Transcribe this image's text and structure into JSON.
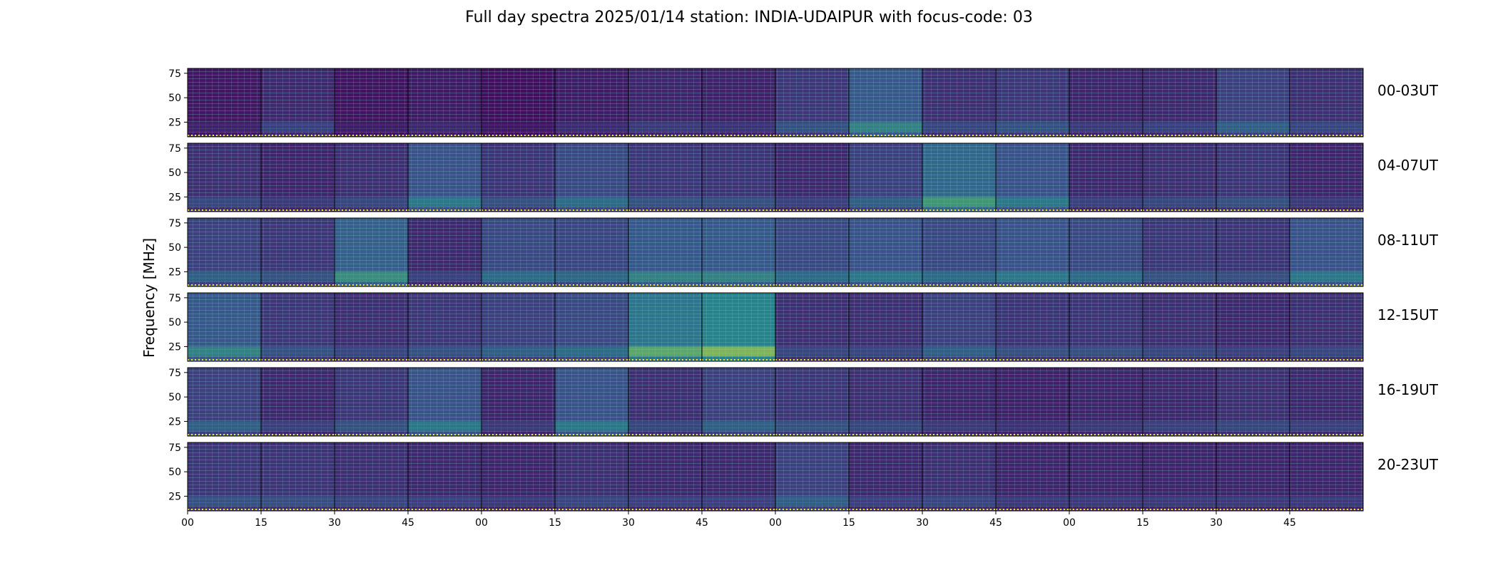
{
  "title": "Full day spectra 2025/01/14 station: INDIA-UDAIPUR with focus-code: 03",
  "chart_data": {
    "type": "heatmap",
    "title": "Full day spectra 2025/01/14 station: INDIA-UDAIPUR with focus-code: 03",
    "ylabel": "Frequency [MHz]",
    "xlabel": "",
    "y_ticks": [
      "75",
      "50",
      "25"
    ],
    "y_tick_values": [
      75,
      50,
      25
    ],
    "ylim": [
      10,
      80
    ],
    "x_ticks": [
      "00",
      "15",
      "30",
      "45",
      "00",
      "15",
      "30",
      "45",
      "00",
      "15",
      "30",
      "45",
      "00",
      "15",
      "30",
      "45"
    ],
    "rows": [
      {
        "label": "00-03UT",
        "intensity": [
          0.12,
          0.22,
          0.1,
          0.14,
          0.08,
          0.15,
          0.2,
          0.18,
          0.3,
          0.5,
          0.25,
          0.3,
          0.2,
          0.22,
          0.35,
          0.25
        ]
      },
      {
        "label": "04-07UT",
        "intensity": [
          0.25,
          0.2,
          0.25,
          0.45,
          0.28,
          0.4,
          0.3,
          0.28,
          0.22,
          0.35,
          0.6,
          0.45,
          0.22,
          0.25,
          0.28,
          0.2
        ]
      },
      {
        "label": "08-11UT",
        "intensity": [
          0.35,
          0.3,
          0.55,
          0.22,
          0.4,
          0.38,
          0.5,
          0.5,
          0.4,
          0.45,
          0.4,
          0.45,
          0.4,
          0.3,
          0.28,
          0.45
        ]
      },
      {
        "label": "12-15UT",
        "intensity": [
          0.5,
          0.3,
          0.25,
          0.3,
          0.35,
          0.4,
          0.7,
          0.8,
          0.25,
          0.25,
          0.35,
          0.28,
          0.28,
          0.25,
          0.22,
          0.25
        ]
      },
      {
        "label": "16-19UT",
        "intensity": [
          0.35,
          0.22,
          0.3,
          0.45,
          0.2,
          0.45,
          0.25,
          0.35,
          0.3,
          0.25,
          0.2,
          0.18,
          0.2,
          0.22,
          0.25,
          0.22
        ]
      },
      {
        "label": "20-23UT",
        "intensity": [
          0.3,
          0.28,
          0.25,
          0.22,
          0.2,
          0.25,
          0.22,
          0.22,
          0.35,
          0.22,
          0.25,
          0.2,
          0.2,
          0.2,
          0.2,
          0.2
        ]
      }
    ],
    "colormap": [
      "#440154",
      "#3b528b",
      "#21918c",
      "#5ec962",
      "#fde725"
    ],
    "grid": false,
    "legend": "none"
  }
}
